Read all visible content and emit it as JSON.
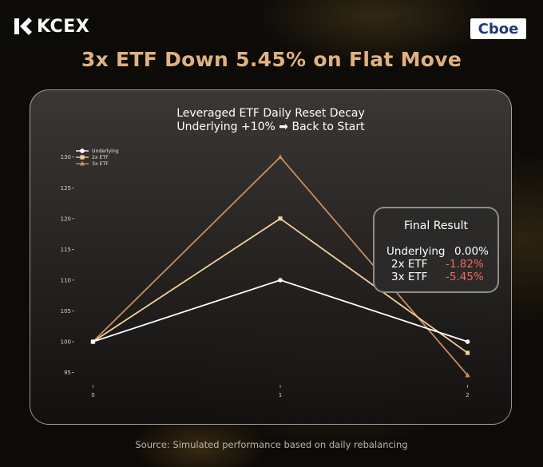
{
  "brand": {
    "logo_text": "KCEX",
    "partner_logo_text": "Cboe"
  },
  "headline": "3x ETF Down 5.45% on Flat Move",
  "colors": {
    "headline": "#e0b27f",
    "underlying": "#ffffff",
    "etf2x": "#f1d29a",
    "etf3x": "#c98f5f",
    "negative": "#f06a5e"
  },
  "chart_data": {
    "type": "line",
    "title": "Leveraged ETF Daily Reset Decay",
    "subtitle": "Underlying +10% ➡ Back to Start",
    "x": [
      0,
      1,
      2
    ],
    "xlabel": "",
    "ylabel": "",
    "ylim": [
      93,
      131
    ],
    "xlim": [
      -0.1,
      2.1
    ],
    "yticks": [
      95,
      100,
      105,
      110,
      115,
      120,
      125,
      130
    ],
    "xticks": [
      0,
      1,
      2
    ],
    "grid": false,
    "legend_position": "top-left",
    "series": [
      {
        "name": "Underlying",
        "values": [
          100,
          110,
          100
        ],
        "marker": "circle",
        "color": "#ffffff"
      },
      {
        "name": "2x ETF",
        "values": [
          100,
          120,
          98.18
        ],
        "marker": "square",
        "color": "#f1d29a"
      },
      {
        "name": "3x ETF",
        "values": [
          100,
          130,
          94.55
        ],
        "marker": "triangle",
        "color": "#c98f5f"
      }
    ]
  },
  "result_box": {
    "title": "Final Result",
    "rows": [
      {
        "label": "Underlying",
        "value": "0.00%"
      },
      {
        "label": "2x ETF",
        "value": "-1.82%"
      },
      {
        "label": "3x ETF",
        "value": "-5.45%"
      }
    ]
  },
  "source": "Source: Simulated performance based on daily rebalancing"
}
